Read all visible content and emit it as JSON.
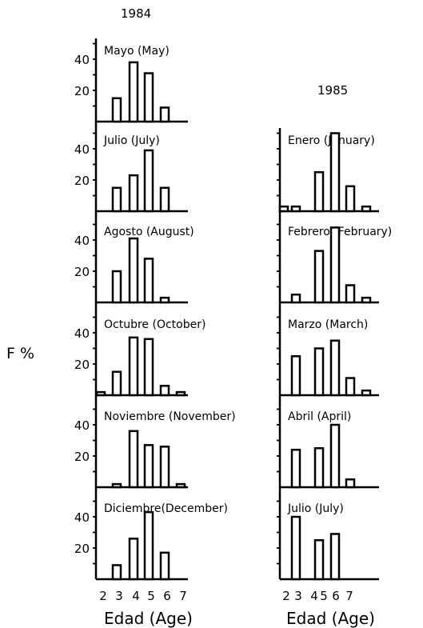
{
  "figure": {
    "y_label": "F %",
    "x_label": "Edad (Age)"
  },
  "chart_data": [
    {
      "type": "bar",
      "year": "1984",
      "x_ticks": [
        "2",
        "3",
        "4",
        "5",
        "6",
        "7"
      ],
      "y_ticks": [
        "20",
        "40"
      ],
      "ylim": [
        0,
        56
      ],
      "categories": [
        2,
        3,
        4,
        5,
        6,
        7
      ],
      "panels": [
        {
          "title": "Mayo (May)",
          "values": [
            0,
            15,
            38,
            31,
            9,
            0
          ]
        },
        {
          "title": "Julio (July)",
          "values": [
            0,
            15,
            23,
            39,
            15,
            0
          ]
        },
        {
          "title": "Agosto (August)",
          "values": [
            0,
            20,
            41,
            28,
            3,
            0
          ]
        },
        {
          "title": "Octubre (October)",
          "values": [
            2,
            15,
            37,
            36,
            6,
            2
          ]
        },
        {
          "title": "Noviembre (November)",
          "values": [
            0,
            2,
            36,
            27,
            26,
            2
          ]
        },
        {
          "title": "Diciembre(December)",
          "values": [
            0,
            9,
            26,
            43,
            17,
            0
          ]
        }
      ]
    },
    {
      "type": "bar",
      "year": "1985",
      "x_ticks": [
        "2",
        "3",
        "4",
        "5",
        "6",
        "7"
      ],
      "y_ticks": [],
      "ylim": [
        0,
        56
      ],
      "categories": [
        2,
        2.5,
        3.25,
        4,
        4.75,
        5.5
      ],
      "panels": [
        {
          "title": "Enero (January)",
          "values": [
            3,
            3,
            25,
            50,
            16,
            3
          ]
        },
        {
          "title": "Febrero (February)",
          "values": [
            0,
            5,
            33,
            48,
            11,
            3
          ]
        },
        {
          "title": "Marzo (March)",
          "values": [
            0,
            25,
            30,
            35,
            11,
            3
          ]
        },
        {
          "title": "Abril (April)",
          "values": [
            0,
            24,
            25,
            40,
            5,
            0
          ]
        },
        {
          "title": "Julio  (July)",
          "values": [
            0,
            40,
            25,
            29,
            0,
            0
          ]
        }
      ]
    }
  ]
}
